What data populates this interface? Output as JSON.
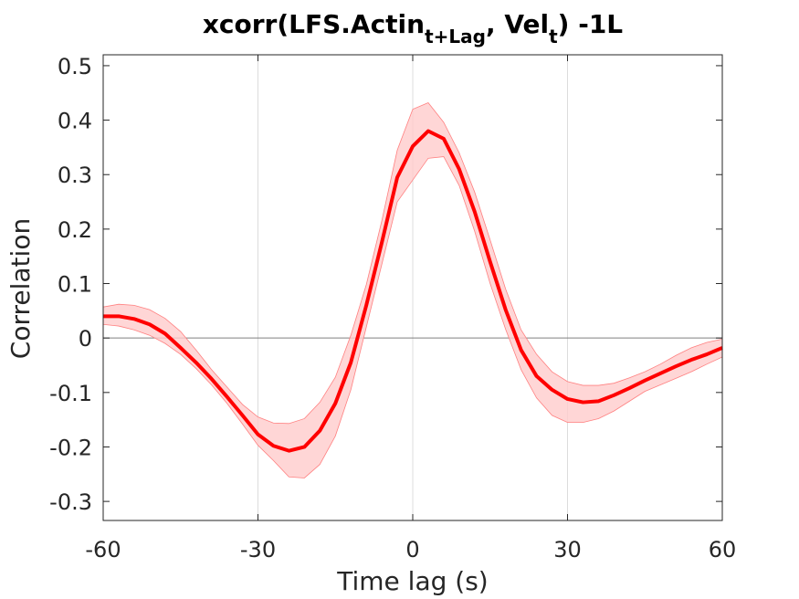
{
  "chart_data": {
    "type": "line",
    "title_parts": {
      "prefix": "xcorr(LFS.Actin",
      "sub1": "t+Lag",
      "middle": ", Vel",
      "sub2": "t",
      "suffix": ") -1L"
    },
    "xlabel": "Time lag (s)",
    "ylabel": "Correlation",
    "xlim": [
      -60,
      60
    ],
    "ylim": [
      -0.335,
      0.52
    ],
    "xticks": [
      -60,
      -30,
      0,
      30,
      60
    ],
    "xtick_labels": [
      "-60",
      "-30",
      "0",
      "30",
      "60"
    ],
    "yticks": [
      -0.3,
      -0.2,
      -0.1,
      0,
      0.1,
      0.2,
      0.3,
      0.4,
      0.5
    ],
    "ytick_labels": [
      "-0.3",
      "-0.2",
      "-0.1",
      "0",
      "0.1",
      "0.2",
      "0.3",
      "0.4",
      "0.5"
    ],
    "grid_x": true,
    "zero_line": true,
    "colors": {
      "line": "#ff0000",
      "band_fill": "#ffcccc",
      "band_edge": "#ff8080",
      "grid": "#dcdcdc",
      "zero": "#7f7f7f",
      "axes": "#262626"
    },
    "series": [
      {
        "x": [
          -60,
          -57,
          -54,
          -51,
          -48,
          -45,
          -42,
          -39,
          -36,
          -33,
          -30,
          -27,
          -24,
          -21,
          -18,
          -15,
          -12,
          -9,
          -6,
          -3,
          0,
          3,
          6,
          9,
          12,
          15,
          18,
          21,
          24,
          27,
          30,
          33,
          36,
          39,
          42,
          45,
          48,
          51,
          54,
          57,
          60
        ],
        "y": [
          0.04,
          0.04,
          0.035,
          0.025,
          0.008,
          -0.018,
          -0.045,
          -0.075,
          -0.108,
          -0.142,
          -0.177,
          -0.198,
          -0.207,
          -0.2,
          -0.17,
          -0.12,
          -0.045,
          0.06,
          0.175,
          0.295,
          0.352,
          0.38,
          0.366,
          0.31,
          0.232,
          0.14,
          0.052,
          -0.022,
          -0.07,
          -0.095,
          -0.112,
          -0.118,
          -0.116,
          -0.105,
          -0.092,
          -0.078,
          -0.065,
          -0.052,
          -0.04,
          -0.03,
          -0.018
        ],
        "lower": [
          0.025,
          0.022,
          0.015,
          0.005,
          -0.01,
          -0.03,
          -0.056,
          -0.086,
          -0.12,
          -0.158,
          -0.197,
          -0.225,
          -0.255,
          -0.257,
          -0.232,
          -0.18,
          -0.095,
          0.02,
          0.135,
          0.25,
          0.29,
          0.33,
          0.333,
          0.28,
          0.196,
          0.1,
          0.016,
          -0.058,
          -0.11,
          -0.142,
          -0.155,
          -0.155,
          -0.148,
          -0.134,
          -0.116,
          -0.098,
          -0.086,
          -0.074,
          -0.062,
          -0.048,
          -0.035
        ],
        "upper": [
          0.057,
          0.062,
          0.06,
          0.052,
          0.036,
          0.012,
          -0.022,
          -0.058,
          -0.09,
          -0.122,
          -0.145,
          -0.156,
          -0.157,
          -0.148,
          -0.118,
          -0.072,
          0.005,
          0.098,
          0.215,
          0.345,
          0.42,
          0.432,
          0.396,
          0.34,
          0.268,
          0.18,
          0.09,
          0.015,
          -0.03,
          -0.062,
          -0.08,
          -0.087,
          -0.087,
          -0.083,
          -0.073,
          -0.062,
          -0.048,
          -0.032,
          -0.018,
          -0.008,
          -0.002
        ]
      }
    ]
  }
}
